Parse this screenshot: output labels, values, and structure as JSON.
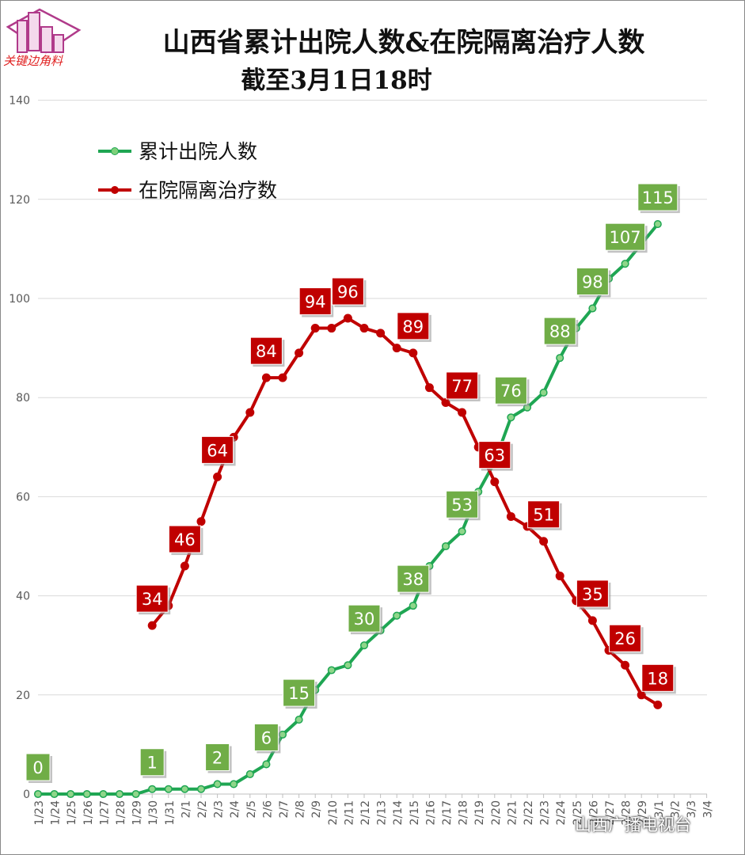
{
  "page": {
    "title_line1": "山西省累计出院人数&在院隔离治疗人数",
    "title_line2": "截至3月1日18时",
    "logo_text": "关键边角料",
    "watermark": "山西广播电视台"
  },
  "colors": {
    "green_line": "#1fa653",
    "green_label": "#70ad47",
    "red_line": "#c00000",
    "red_label": "#c00000",
    "grid": "#d9d9d9"
  },
  "chart_data": {
    "type": "line",
    "ylim": [
      0,
      140
    ],
    "yticks": [
      0,
      20,
      40,
      60,
      80,
      100,
      120,
      140
    ],
    "grid": true,
    "legend_position": "top-left",
    "x": [
      "1/23",
      "1/24",
      "1/25",
      "1/26",
      "1/27",
      "1/28",
      "1/29",
      "1/30",
      "1/31",
      "2/1",
      "2/2",
      "2/3",
      "2/4",
      "2/5",
      "2/6",
      "2/7",
      "2/8",
      "2/9",
      "2/10",
      "2/11",
      "2/12",
      "2/13",
      "2/14",
      "2/15",
      "2/16",
      "2/17",
      "2/18",
      "2/19",
      "2/20",
      "2/21",
      "2/22",
      "2/23",
      "2/24",
      "2/25",
      "2/26",
      "2/27",
      "2/28",
      "2/29",
      "3/1",
      "3/2",
      "3/3",
      "3/4"
    ],
    "series": [
      {
        "name": "累计出院人数",
        "color": "#1fa653",
        "values": [
          0,
          0,
          0,
          0,
          0,
          0,
          0,
          1,
          1,
          1,
          1,
          2,
          2,
          4,
          6,
          12,
          15,
          21,
          25,
          26,
          30,
          33,
          36,
          38,
          46,
          50,
          53,
          61,
          67,
          76,
          78,
          81,
          88,
          94,
          98,
          104,
          107,
          111,
          115,
          null,
          null,
          null
        ],
        "labeled_points": [
          0,
          7,
          11,
          14,
          16,
          20,
          23,
          26,
          29,
          32,
          34,
          36,
          38
        ]
      },
      {
        "name": "在院隔离治疗数",
        "color": "#c00000",
        "values": [
          null,
          null,
          null,
          null,
          null,
          null,
          null,
          34,
          38,
          46,
          55,
          64,
          72,
          77,
          84,
          84,
          89,
          94,
          94,
          96,
          94,
          93,
          90,
          89,
          82,
          79,
          77,
          70,
          63,
          56,
          54,
          51,
          44,
          39,
          35,
          29,
          26,
          20,
          18,
          null,
          null,
          null
        ],
        "labeled_points": [
          7,
          9,
          11,
          14,
          17,
          19,
          23,
          26,
          28,
          31,
          34,
          36,
          38
        ]
      }
    ]
  }
}
